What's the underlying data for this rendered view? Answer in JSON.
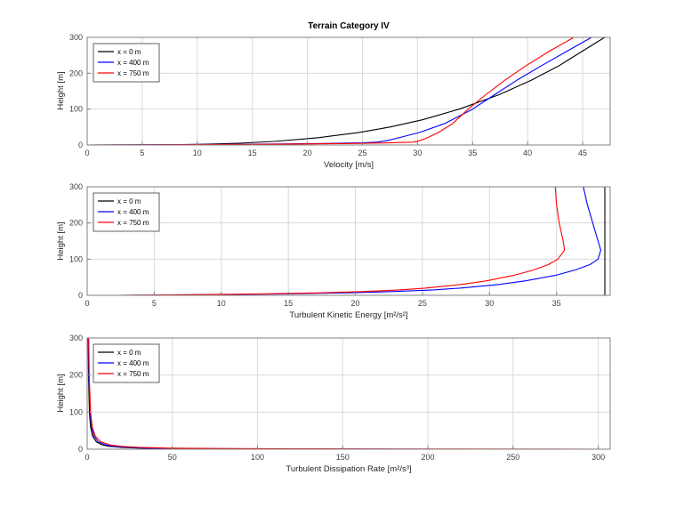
{
  "figure": {
    "title": "Terrain Category IV"
  },
  "theme": {
    "background": "#ffffff",
    "axis_color": "#808080",
    "grid_color": "#d9d9d9",
    "tick_text_color": "#404040",
    "legend_border": "#606060",
    "series_colors": {
      "x0": "#000000",
      "x400": "#0000ff",
      "x750": "#ff0000"
    }
  },
  "chart_data": [
    {
      "type": "line",
      "title": "Terrain Category IV",
      "xlabel": "Velocity [m/s]",
      "ylabel": "Height [m]",
      "xlim": [
        0,
        47.5
      ],
      "ylim": [
        0,
        300
      ],
      "xticks": [
        0,
        5,
        10,
        15,
        20,
        25,
        30,
        35,
        40,
        45
      ],
      "yticks": [
        0,
        100,
        200,
        300
      ],
      "grid": true,
      "legend_position": "top-left",
      "series": [
        {
          "name": "x = 0 m",
          "color": "#000000",
          "x": [
            0,
            6.9,
            8.5,
            10.5,
            13.8,
            17.0,
            20.9,
            24.7,
            27.5,
            30.4,
            33.8,
            37.4,
            40.3,
            42.8,
            44.9,
            47.0
          ],
          "y": [
            0,
            0.5,
            1,
            2,
            5,
            10,
            20,
            35,
            50,
            70,
            100,
            140,
            180,
            220,
            260,
            300
          ]
        },
        {
          "name": "x = 400 m",
          "color": "#0000ff",
          "x": [
            0,
            5.0,
            9.0,
            14.5,
            21.0,
            25.0,
            26.3,
            27.2,
            28.3,
            30.2,
            32.5,
            35.0,
            37.0,
            39.0,
            41.2,
            43.5,
            45.8
          ],
          "y": [
            0,
            0.5,
            1,
            2,
            4,
            6,
            8,
            12,
            20,
            35,
            60,
            100,
            140,
            180,
            220,
            260,
            300
          ]
        },
        {
          "name": "x = 750 m",
          "color": "#ff0000",
          "x": [
            0,
            6.0,
            10.5,
            16.5,
            23.5,
            27.5,
            29.6,
            30.2,
            30.9,
            31.9,
            33.2,
            34.6,
            36.2,
            37.9,
            39.8,
            41.9,
            44.2
          ],
          "y": [
            0,
            0.5,
            1,
            2,
            4,
            6,
            8,
            12,
            20,
            35,
            60,
            100,
            140,
            180,
            220,
            260,
            300
          ]
        }
      ]
    },
    {
      "type": "line",
      "title": "",
      "xlabel": "Turbulent Kinetic Energy [m²/s²]",
      "ylabel": "Height [m]",
      "xlim": [
        0,
        39
      ],
      "ylim": [
        0,
        300
      ],
      "xticks": [
        0,
        5,
        10,
        15,
        20,
        25,
        30,
        35
      ],
      "yticks": [
        0,
        100,
        200,
        300
      ],
      "grid": true,
      "legend_position": "top-left",
      "series": [
        {
          "name": "x = 0 m",
          "color": "#000000",
          "x": [
            38.6,
            38.6
          ],
          "y": [
            0,
            300
          ]
        },
        {
          "name": "x = 400 m",
          "color": "#0000ff",
          "x": [
            2.3,
            6.0,
            9.5,
            14.5,
            19.5,
            22.5,
            25.8,
            27.8,
            30.7,
            32.7,
            34.9,
            36.4,
            37.5,
            38.1,
            38.3,
            38.1,
            37.7,
            37.3,
            37.0
          ],
          "y": [
            0,
            1,
            2,
            4,
            7,
            10,
            15,
            20,
            30,
            40,
            55,
            70,
            85,
            100,
            125,
            150,
            200,
            250,
            300
          ]
        },
        {
          "name": "x = 750 m",
          "color": "#ff0000",
          "x": [
            2.3,
            5.5,
            8.5,
            13.0,
            17.5,
            20.3,
            23.3,
            25.2,
            27.9,
            29.8,
            31.8,
            33.3,
            34.4,
            35.1,
            35.6,
            35.5,
            35.2,
            35.0,
            34.9
          ],
          "y": [
            0,
            1,
            2,
            4,
            7,
            10,
            15,
            20,
            30,
            40,
            55,
            70,
            85,
            100,
            125,
            150,
            200,
            250,
            300
          ]
        }
      ]
    },
    {
      "type": "line",
      "title": "",
      "xlabel": "Turbulent Dissipation Rate [m²/s³]",
      "ylabel": "Height [m]",
      "xlim": [
        0,
        307
      ],
      "ylim": [
        0,
        300
      ],
      "xticks": [
        0,
        50,
        100,
        150,
        200,
        250,
        300
      ],
      "yticks": [
        0,
        100,
        200,
        300
      ],
      "grid": true,
      "legend_position": "top-left",
      "series": [
        {
          "name": "x = 0 m",
          "color": "#000000",
          "x": [
            160,
            110,
            75,
            45,
            31,
            20,
            12.5,
            8.7,
            5.4,
            3.2,
            2.0,
            1.3,
            0.8,
            0.6
          ],
          "y": [
            0,
            0.5,
            1,
            2,
            3,
            5,
            8,
            12,
            20,
            35,
            60,
            100,
            200,
            300
          ]
        },
        {
          "name": "x = 400 m",
          "color": "#0000ff",
          "x": [
            210,
            140,
            95,
            55,
            38,
            24,
            15,
            10.5,
            6.5,
            4.0,
            2.5,
            1.7,
            1.0,
            0.8
          ],
          "y": [
            0,
            0.5,
            1,
            2,
            3,
            5,
            8,
            12,
            20,
            35,
            60,
            100,
            200,
            300
          ]
        },
        {
          "name": "x = 750 m",
          "color": "#ff0000",
          "x": [
            305,
            180,
            120,
            70,
            48,
            30,
            19,
            13,
            8.0,
            4.8,
            3.0,
            2.0,
            1.2,
            0.9
          ],
          "y": [
            0,
            0.5,
            1,
            2,
            3,
            5,
            8,
            12,
            20,
            35,
            60,
            100,
            200,
            300
          ]
        }
      ]
    }
  ]
}
